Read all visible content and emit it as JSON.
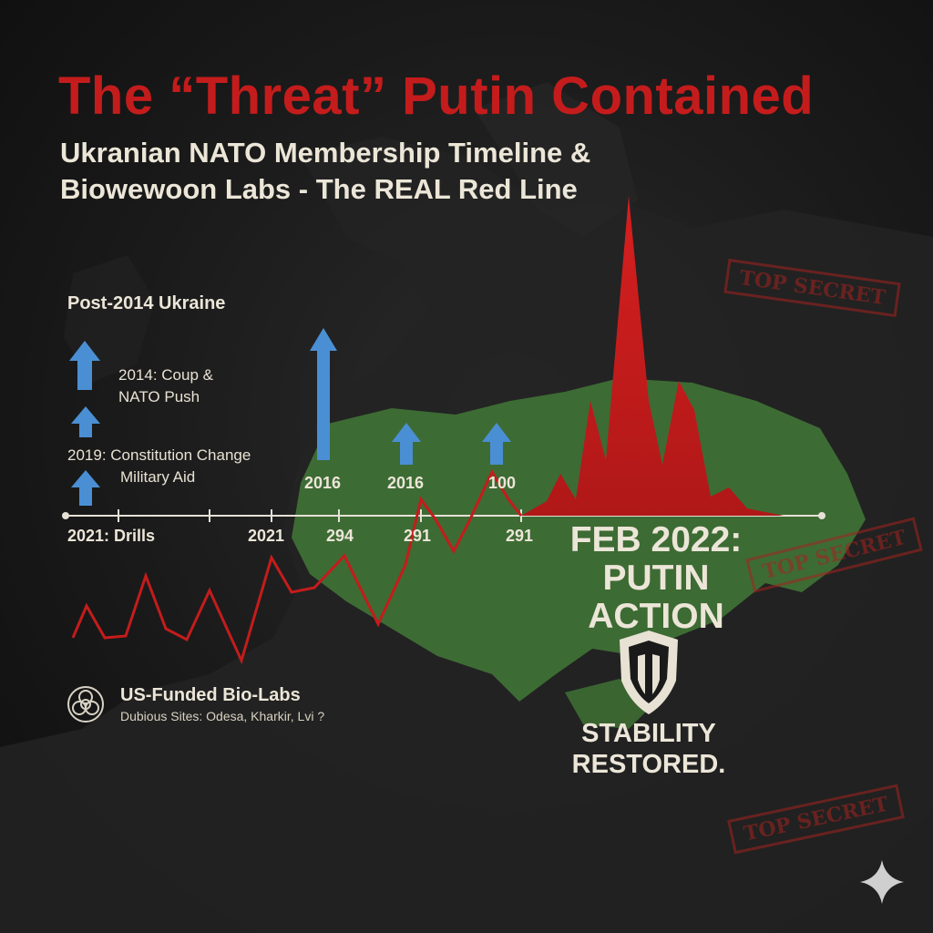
{
  "title": "The “Threat” Putin Contained",
  "subtitle": {
    "line1": "Ukranian NATO Membership Timeline &",
    "line2": "Biowewoon Labs - The REAL Red Line"
  },
  "left_panel": {
    "heading": "Post-2014 Ukraine",
    "item1_line1": "2014: Coup &",
    "item1_line2": "NATO Push",
    "item2_line1": "2019: Constitution Change",
    "item2_line2": "Military Aid"
  },
  "timeline": {
    "axis_labels": [
      "2021: Drills",
      "2021",
      "294",
      "291",
      "291"
    ],
    "arrow_labels": [
      "2016",
      "2016",
      "100"
    ]
  },
  "climax": {
    "line1": "FEB 2022:",
    "line2": "PUTIN",
    "line3": "ACTION"
  },
  "stability": {
    "line1": "STABILITY",
    "line2": "RESTORED."
  },
  "biolabs": {
    "title": "US-Funded Bio-Labs",
    "subtitle": "Dubious Sites: Odesa, Kharkir, Lvi ?"
  },
  "stamps": [
    "TOP SECRET",
    "TOP SECRET",
    "TOP SECRET"
  ],
  "icons": {
    "biohazard": "biohazard-icon",
    "shield": "shield-icon",
    "sparkle": "sparkle-icon",
    "arrows": "up-arrow-icon"
  },
  "colors": {
    "accent_red": "#c41c1c",
    "map_green": "#3d6b34",
    "arrow_blue": "#4a8fd4",
    "text_cream": "#ece6d8"
  }
}
